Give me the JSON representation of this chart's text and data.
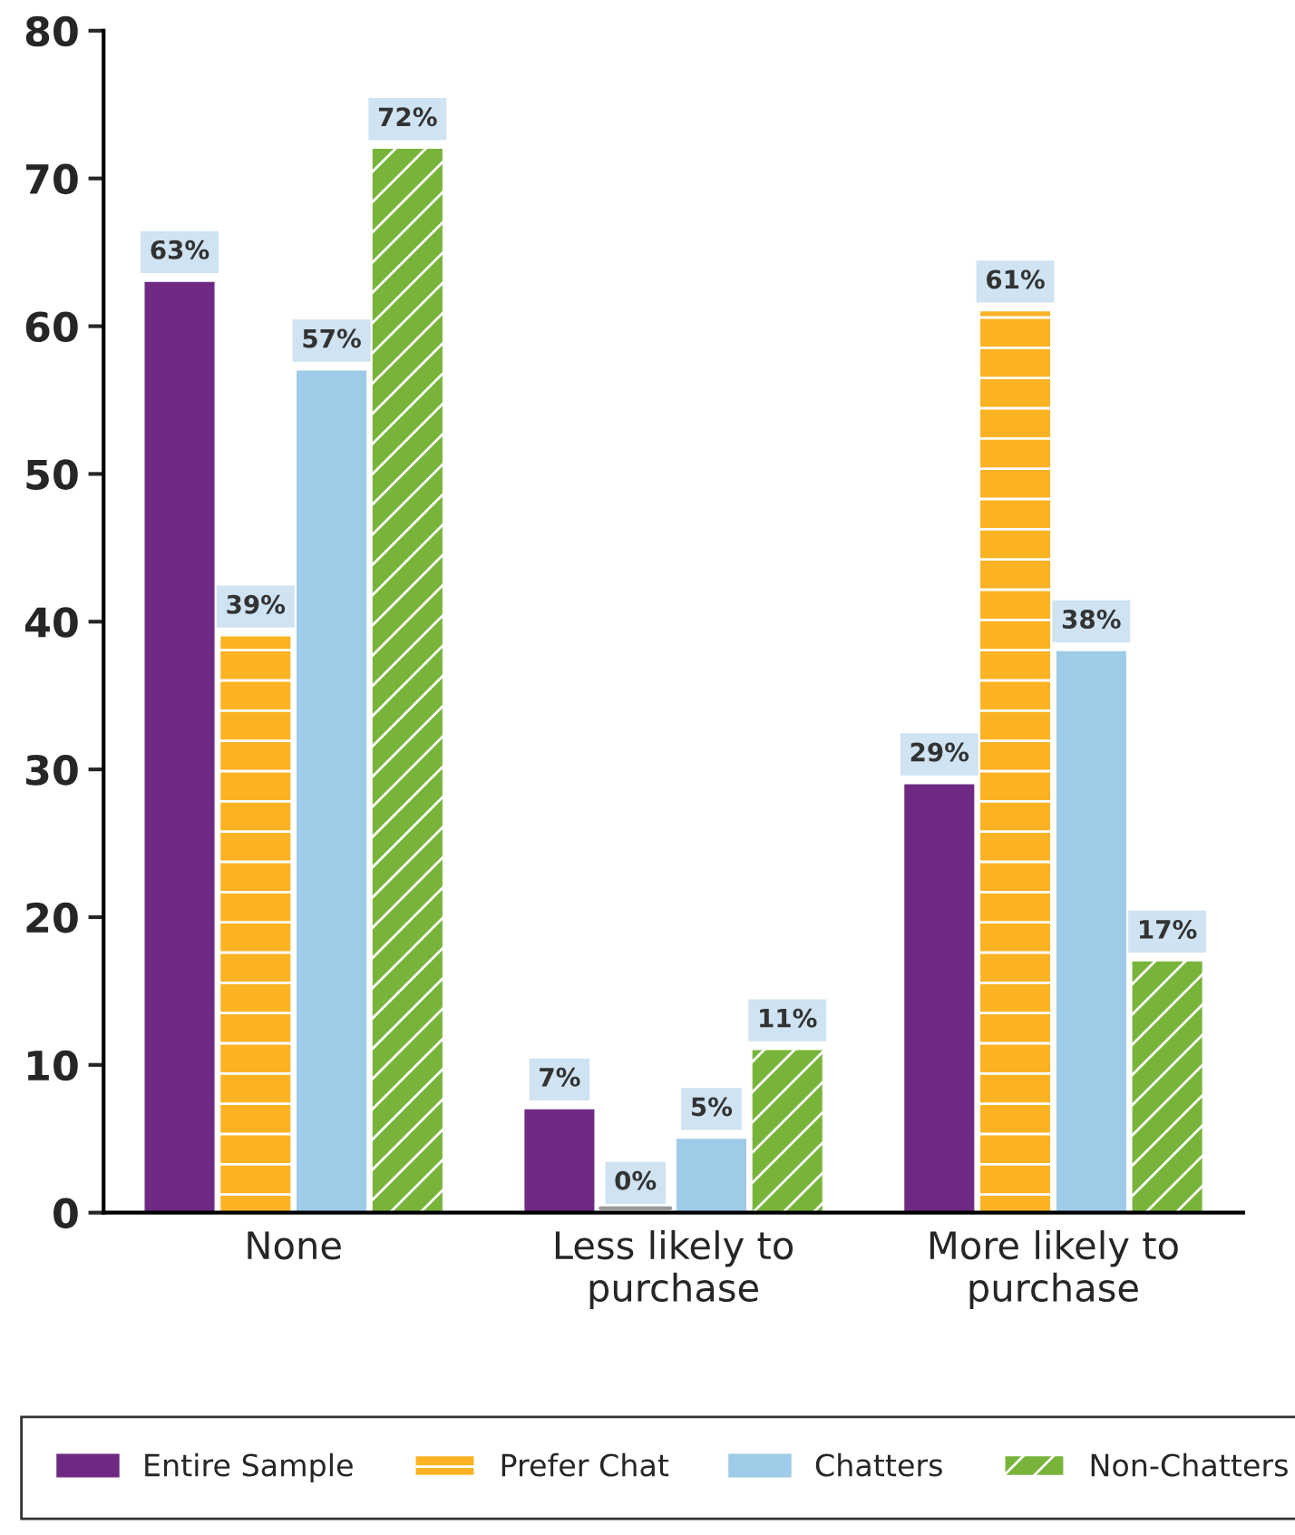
{
  "chart_data": {
    "type": "bar",
    "categories": [
      "None",
      "Less likely to\npurchase",
      "More likely to\npurchase"
    ],
    "series": [
      {
        "name": "Entire Sample",
        "color": "#6e2a82",
        "values": [
          63,
          7,
          29
        ],
        "value_labels": [
          "63%",
          "7%",
          "29%"
        ]
      },
      {
        "name": "Prefer Chat",
        "color": "#fbb323",
        "values": [
          39,
          0,
          61
        ],
        "value_labels": [
          "39%",
          "0%",
          "61%"
        ]
      },
      {
        "name": "Chatters",
        "color": "#9ecbe8",
        "values": [
          57,
          5,
          38
        ],
        "value_labels": [
          "57%",
          "5%",
          "38%"
        ]
      },
      {
        "name": "Non-Chatters",
        "color": "#78b43a",
        "values": [
          72,
          11,
          17
        ],
        "value_labels": [
          "72%",
          "11%",
          "17%"
        ]
      }
    ],
    "ylim": [
      0,
      80
    ],
    "yticks": [
      0,
      10,
      20,
      30,
      40,
      50,
      60,
      70,
      80
    ],
    "grid": false,
    "legend": "bottom"
  }
}
